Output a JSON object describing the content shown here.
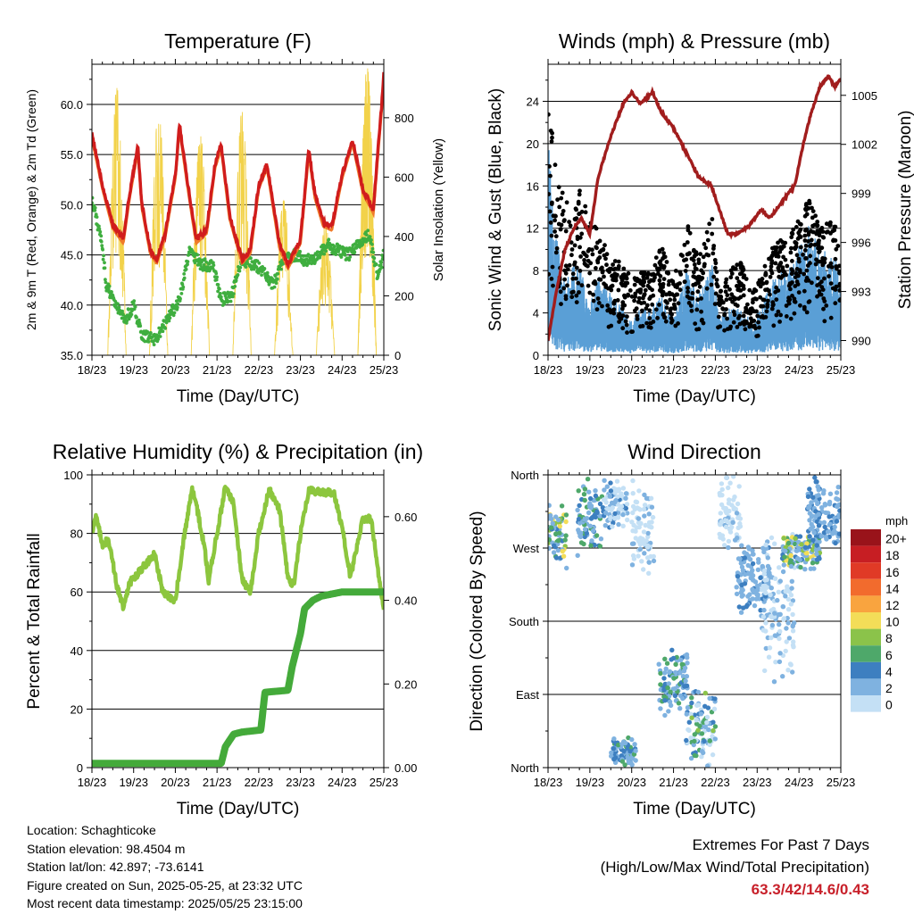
{
  "info": {
    "location": "Location: Schaghticoke",
    "elevation": "Station elevation: 98.4504 m",
    "latlon": "Station lat/lon: 42.897; -73.6141",
    "created": "Figure created on Sun, 2025-05-25, at 23:32 UTC",
    "recent": "Most recent data timestamp: 2025/05/25 23:15:00"
  },
  "extremes": {
    "title": "Extremes For Past 7 Days",
    "subtitle": "(High/Low/Max Wind/Total Precipitation)",
    "values": "63.3/42/14.6/0.43",
    "value_color": "#c8202a"
  },
  "colors": {
    "temperature": "#d01c1c",
    "temperature_9m": "#f07b2a",
    "dewpoint": "#3fae3f",
    "solar": "#f2d24a",
    "wind": "#5a9fd6",
    "gust": "#000000",
    "pressure": "#a11d1d",
    "rh": "#8cc63e",
    "precip": "#44aa3a"
  },
  "chart_data": [
    {
      "type": "line",
      "title": "Temperature (F)",
      "xlabel": "Time (Day/UTC)",
      "ylabel": "2m & 9m T (Red, Orange) & 2m Td (Green)",
      "y2label": "Solar Insolation (Yellow)",
      "x_ticks": [
        "18/23",
        "19/23",
        "20/23",
        "21/23",
        "22/23",
        "23/23",
        "24/23",
        "25/23"
      ],
      "xlim": [
        0,
        7
      ],
      "ylim": [
        35,
        64
      ],
      "y_ticks": [
        "35.0",
        "40.0",
        "45.0",
        "50.0",
        "55.0",
        "60.0"
      ],
      "y2lim": [
        0,
        980
      ],
      "y2_ticks": [
        "0",
        "200",
        "400",
        "600",
        "800"
      ],
      "grid": "horizontal",
      "series": [
        {
          "role": "temperature_2m",
          "x": [
            0,
            0.25,
            0.5,
            0.75,
            0.9,
            1.1,
            1.2,
            1.4,
            1.55,
            1.75,
            2,
            2.1,
            2.3,
            2.5,
            2.75,
            2.95,
            3.1,
            3.3,
            3.6,
            3.8,
            4.0,
            4.2,
            4.5,
            4.7,
            5.0,
            5.2,
            5.35,
            5.55,
            5.75,
            6.0,
            6.25,
            6.5,
            6.75,
            6.85,
            6.95,
            7.0
          ],
          "y": [
            57,
            52,
            48,
            46.5,
            51,
            55.8,
            50,
            45.5,
            44.5,
            47,
            53,
            58,
            52,
            46.5,
            47.5,
            54,
            56,
            49,
            44.5,
            45.5,
            52,
            54,
            46,
            44,
            46.5,
            55.5,
            51,
            48.2,
            47.8,
            53,
            56.5,
            51.5,
            49.5,
            55,
            60,
            63
          ]
        },
        {
          "role": "dewpoint_2m",
          "x": [
            0,
            0.2,
            0.35,
            0.6,
            0.8,
            1.0,
            1.2,
            1.5,
            1.8,
            2.1,
            2.35,
            2.6,
            2.9,
            3.1,
            3.35,
            3.6,
            3.9,
            4.1,
            4.35,
            4.6,
            4.9,
            5.1,
            5.35,
            5.65,
            5.9,
            6.15,
            6.4,
            6.65,
            6.85,
            7.0
          ],
          "y": [
            50.5,
            47,
            42,
            40,
            38.5,
            40,
            37,
            36.5,
            38.5,
            40.5,
            45.5,
            44,
            44,
            40.5,
            41,
            44.5,
            44,
            43.5,
            42,
            44.5,
            45,
            44.5,
            44.5,
            46,
            45.5,
            45,
            46,
            47,
            43,
            45
          ]
        },
        {
          "role": "solar_insolation",
          "peaks_x": [
            0.55,
            1.6,
            2.55,
            3.55,
            4.55,
            5.55,
            6.4,
            6.55
          ],
          "peaks_y": [
            900,
            830,
            740,
            820,
            520,
            440,
            930,
            970
          ],
          "day_start_offset": 0.38,
          "day_end_offset": 0.82
        }
      ]
    },
    {
      "type": "line",
      "title": "Winds (mph) & Pressure (mb)",
      "xlabel": "Time (Day/UTC)",
      "ylabel": "Sonic Wind & Gust (Blue, Black)",
      "y2label": "Station Pressure (Maroon)",
      "x_ticks": [
        "18/23",
        "19/23",
        "20/23",
        "21/23",
        "22/23",
        "23/23",
        "24/23",
        "25/23"
      ],
      "xlim": [
        0,
        7
      ],
      "ylim": [
        0,
        27.5
      ],
      "y_ticks": [
        "0",
        "4",
        "8",
        "12",
        "16",
        "20",
        "24"
      ],
      "y2lim": [
        989.1,
        1006.9
      ],
      "y2_ticks": [
        "990",
        "993",
        "996",
        "999",
        "1002",
        "1005"
      ],
      "grid": "horizontal",
      "series": [
        {
          "role": "pressure",
          "x": [
            0,
            0.2,
            0.4,
            0.6,
            0.8,
            1.0,
            1.2,
            1.5,
            1.8,
            2.0,
            2.2,
            2.5,
            2.7,
            3.0,
            3.3,
            3.6,
            3.9,
            4.1,
            4.3,
            4.5,
            4.8,
            5.1,
            5.3,
            5.6,
            5.9,
            6.1,
            6.3,
            6.5,
            6.7,
            6.85,
            7.0
          ],
          "y": [
            990,
            993,
            995.5,
            996.8,
            997.5,
            996.5,
            1000,
            1002.5,
            1004.5,
            1005.2,
            1004.5,
            1005.2,
            1004,
            1003,
            1001.5,
            1000,
            999.5,
            998,
            996.5,
            996.5,
            997,
            998,
            997.5,
            998.5,
            999.5,
            1002,
            1004,
            1005.5,
            1006.2,
            1005.5,
            1006
          ]
        },
        {
          "role": "wind_mean",
          "x": [
            0,
            0.2,
            0.4,
            0.6,
            0.8,
            1.0,
            1.2,
            1.5,
            1.8,
            2.0,
            2.2,
            2.5,
            2.7,
            3.0,
            3.3,
            3.6,
            3.9,
            4.1,
            4.3,
            4.6,
            4.9,
            5.1,
            5.3,
            5.6,
            5.9,
            6.1,
            6.3,
            6.5,
            6.7,
            6.9,
            7.0
          ],
          "y": [
            9,
            5,
            3,
            4,
            3.5,
            2,
            3.5,
            2.5,
            2,
            1.5,
            2,
            2,
            2.5,
            1.5,
            3.5,
            2.5,
            4,
            1.5,
            2,
            2,
            1.5,
            2,
            3,
            3.5,
            4,
            5,
            5.5,
            4,
            4.5,
            4,
            3
          ]
        },
        {
          "role": "gust_scatter_envelope",
          "x": [
            0,
            0.2,
            0.4,
            0.6,
            0.8,
            1.0,
            1.2,
            1.5,
            1.8,
            2.0,
            2.2,
            2.5,
            2.7,
            3.0,
            3.3,
            3.6,
            3.9,
            4.1,
            4.3,
            4.6,
            4.9,
            5.1,
            5.3,
            5.6,
            5.9,
            6.1,
            6.3,
            6.5,
            6.7,
            6.9,
            7.0
          ],
          "y": [
            24,
            18,
            15,
            14,
            16,
            13,
            12,
            9,
            9,
            7,
            8,
            8,
            11,
            7,
            13,
            9,
            14,
            6,
            8,
            9,
            6,
            8,
            10,
            11,
            12,
            14,
            15,
            12,
            13,
            12,
            9
          ]
        }
      ]
    },
    {
      "type": "line",
      "title": "Relative Humidity (%) & Precipitation (in)",
      "xlabel": "Time (Day/UTC)",
      "ylabel": "Percent & Total Rainfall",
      "x_ticks": [
        "18/23",
        "19/23",
        "20/23",
        "21/23",
        "22/23",
        "23/23",
        "24/23",
        "25/23"
      ],
      "xlim": [
        0,
        7
      ],
      "ylim": [
        0,
        100
      ],
      "y_ticks": [
        "0",
        "20",
        "40",
        "60",
        "80",
        "100"
      ],
      "y2lim": [
        0,
        0.7
      ],
      "y2_ticks": [
        "0.00",
        "0.20",
        "0.40",
        "0.60"
      ],
      "grid": "horizontal",
      "series": [
        {
          "role": "relative_humidity",
          "x": [
            0,
            0.1,
            0.25,
            0.4,
            0.6,
            0.75,
            0.9,
            1.2,
            1.5,
            1.7,
            2.0,
            2.2,
            2.4,
            2.5,
            2.7,
            2.8,
            3.0,
            3.2,
            3.4,
            3.6,
            3.8,
            4.0,
            4.25,
            4.5,
            4.7,
            4.85,
            5.0,
            5.2,
            5.5,
            5.8,
            6.0,
            6.2,
            6.5,
            6.7,
            6.9,
            7.0
          ],
          "y": [
            80,
            86,
            76,
            78,
            62,
            55,
            63,
            68,
            73,
            60,
            57,
            78,
            95,
            90,
            75,
            64,
            80,
            96,
            90,
            64,
            60,
            80,
            95,
            88,
            65,
            62,
            80,
            95,
            94,
            94,
            82,
            65,
            85,
            85,
            63,
            54
          ]
        },
        {
          "role": "total_precipitation",
          "x": [
            0,
            3.1,
            3.2,
            3.4,
            3.6,
            4.05,
            4.15,
            4.7,
            4.8,
            5.0,
            5.1,
            5.3,
            5.5,
            6.0,
            7.0
          ],
          "y": [
            0.01,
            0.01,
            0.05,
            0.08,
            0.085,
            0.09,
            0.18,
            0.185,
            0.24,
            0.32,
            0.38,
            0.4,
            0.41,
            0.42,
            0.42
          ]
        }
      ]
    },
    {
      "type": "scatter",
      "title": "Wind Direction",
      "xlabel": "Time (Day/UTC)",
      "ylabel": "Direction (Colored By Speed)",
      "x_ticks": [
        "18/23",
        "19/23",
        "20/23",
        "21/23",
        "22/23",
        "23/23",
        "24/23",
        "25/23"
      ],
      "xlim": [
        0,
        7
      ],
      "ylim": [
        0,
        360
      ],
      "y_ticks": [
        "North",
        "East",
        "South",
        "West",
        "North"
      ],
      "grid": "horizontal",
      "colorbar": {
        "unit": "mph",
        "labels": [
          "20+",
          "18",
          "16",
          "14",
          "12",
          "10",
          "8",
          "6",
          "4",
          "2",
          "0"
        ],
        "colors": [
          "#99131a",
          "#c71e23",
          "#e03a26",
          "#f26b2d",
          "#f9a43f",
          "#f3dd58",
          "#8bc34a",
          "#4ea86a",
          "#3d7fc0",
          "#7fb2e0",
          "#c4e0f5"
        ]
      },
      "clusters": [
        {
          "x": [
            0,
            0.45
          ],
          "dir": [
            240,
            330
          ],
          "speed": [
            2,
            12
          ]
        },
        {
          "x": [
            0.7,
            1.3
          ],
          "dir": [
            250,
            360
          ],
          "speed": [
            2,
            8
          ]
        },
        {
          "x": [
            1.3,
            1.9
          ],
          "dir": [
            290,
            360
          ],
          "speed": [
            1,
            5
          ]
        },
        {
          "x": [
            2.0,
            2.55
          ],
          "dir": [
            230,
            360
          ],
          "speed": [
            0,
            3
          ]
        },
        {
          "x": [
            1.5,
            2.1
          ],
          "dir": [
            0,
            40
          ],
          "speed": [
            2,
            7
          ]
        },
        {
          "x": [
            2.65,
            3.35
          ],
          "dir": [
            60,
            150
          ],
          "speed": [
            2,
            8
          ]
        },
        {
          "x": [
            3.3,
            4.0
          ],
          "dir": [
            0,
            100
          ],
          "speed": [
            1,
            9
          ]
        },
        {
          "x": [
            4.1,
            4.6
          ],
          "dir": [
            260,
            360
          ],
          "speed": [
            0,
            3
          ]
        },
        {
          "x": [
            4.5,
            5.3
          ],
          "dir": [
            180,
            280
          ],
          "speed": [
            2,
            5
          ]
        },
        {
          "x": [
            5.1,
            5.9
          ],
          "dir": [
            100,
            300
          ],
          "speed": [
            1,
            4
          ]
        },
        {
          "x": [
            5.6,
            6.5
          ],
          "dir": [
            240,
            290
          ],
          "speed": [
            3,
            12
          ]
        },
        {
          "x": [
            6.2,
            7.0
          ],
          "dir": [
            260,
            360
          ],
          "speed": [
            2,
            6
          ]
        }
      ]
    }
  ]
}
